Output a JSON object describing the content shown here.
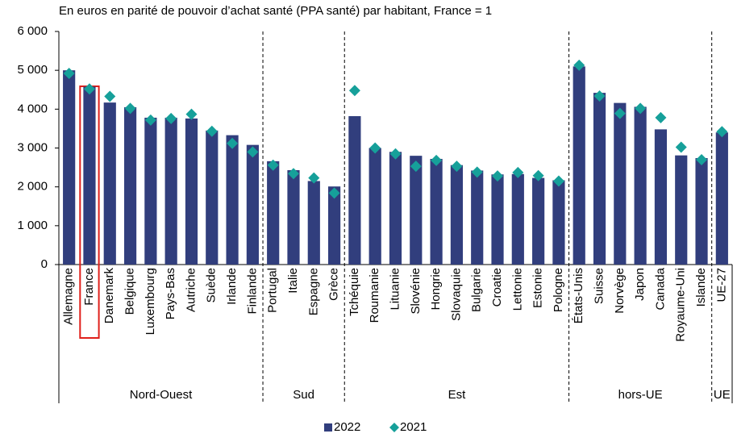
{
  "chart_data": {
    "type": "bar",
    "subtitle": "En euros en parité de pouvoir d’achat santé (PPA santé) par habitant, France = 1",
    "categories": [
      "Allemagne",
      "France",
      "Danemark",
      "Belgique",
      "Luxembourg",
      "Pays-Bas",
      "Autriche",
      "Suède",
      "Irlande",
      "Finlande",
      "Portugal",
      "Italie",
      "Espagne",
      "Grèce",
      "Tchéquie",
      "Roumanie",
      "Lituanie",
      "Slovénie",
      "Hongrie",
      "Slovaquie",
      "Bulgarie",
      "Croatie",
      "Lettonie",
      "Estonie",
      "Pologne",
      "États-Unis",
      "Suisse",
      "Norvège",
      "Japon",
      "Canada",
      "Royaume-Uni",
      "Islande",
      "UE-27"
    ],
    "category_groups": [
      "Nord-Ouest",
      "Nord-Ouest",
      "Nord-Ouest",
      "Nord-Ouest",
      "Nord-Ouest",
      "Nord-Ouest",
      "Nord-Ouest",
      "Nord-Ouest",
      "Nord-Ouest",
      "Nord-Ouest",
      "Sud",
      "Sud",
      "Sud",
      "Sud",
      "Est",
      "Est",
      "Est",
      "Est",
      "Est",
      "Est",
      "Est",
      "Est",
      "Est",
      "Est",
      "Est",
      "hors-UE",
      "hors-UE",
      "hors-UE",
      "hors-UE",
      "hors-UE",
      "hors-UE",
      "hors-UE",
      "UE"
    ],
    "highlight": "France",
    "series": [
      {
        "name": "2022",
        "type": "bar",
        "color": "#313e7d",
        "values": [
          5000,
          4580,
          4170,
          4050,
          3780,
          3780,
          3760,
          3450,
          3330,
          3080,
          2660,
          2430,
          2150,
          2010,
          3820,
          3000,
          2900,
          2800,
          2720,
          2560,
          2420,
          2320,
          2330,
          2230,
          2170,
          5100,
          4420,
          4160,
          4060,
          3480,
          2810,
          2740,
          3400
        ]
      },
      {
        "name": "2021",
        "type": "marker",
        "color": "#16a09a",
        "values": [
          4920,
          4520,
          4330,
          4020,
          3720,
          3760,
          3870,
          3430,
          3120,
          2900,
          2560,
          2340,
          2230,
          1840,
          4480,
          3000,
          2850,
          2530,
          2680,
          2530,
          2380,
          2280,
          2370,
          2290,
          2150,
          5130,
          4340,
          3890,
          4020,
          3780,
          3020,
          2700,
          3420
        ]
      }
    ],
    "ylim": [
      0,
      6000
    ],
    "yticks": [
      0,
      {
        "value": 1000,
        "label": "1 000"
      },
      {
        "value": 2000,
        "label": "2 000"
      },
      {
        "value": 3000,
        "label": "3 000"
      },
      {
        "value": 4000,
        "label": "4 000"
      },
      {
        "value": 5000,
        "label": "5 000"
      },
      {
        "value": 6000,
        "label": "6 000"
      }
    ],
    "grid": false,
    "legend": "bottom"
  }
}
